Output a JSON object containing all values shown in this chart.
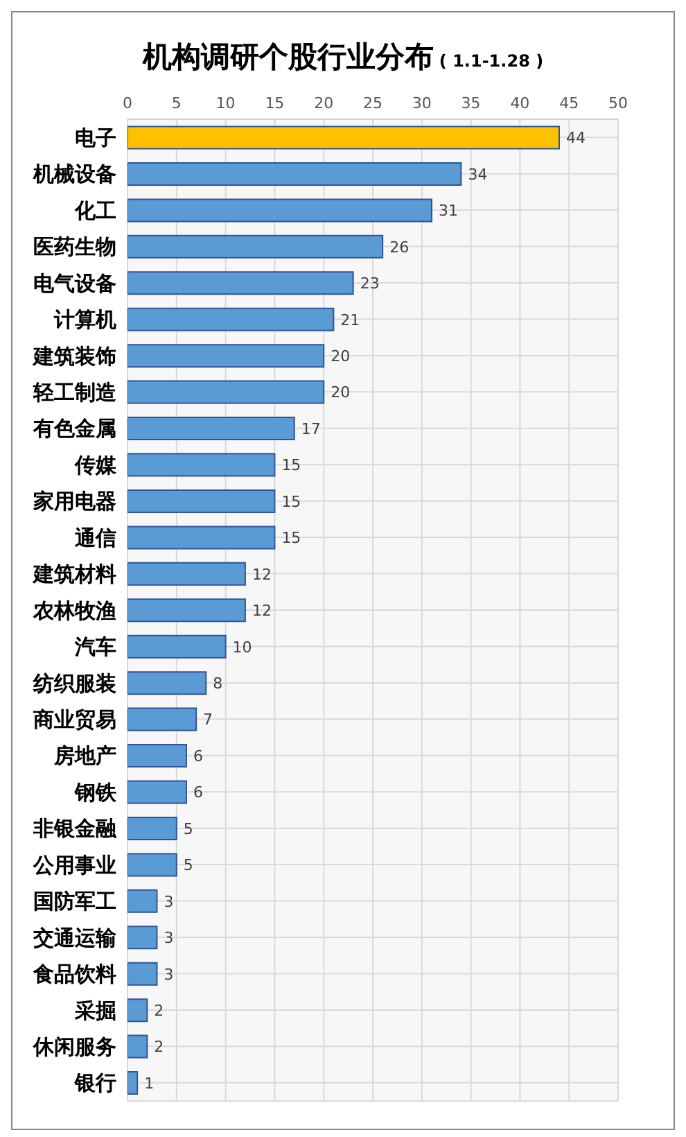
{
  "chart_data": {
    "type": "bar",
    "orientation": "horizontal",
    "title": "机构调研个股行业分布",
    "subtitle": "( 1.1-1.28 )",
    "categories": [
      "电子",
      "机械设备",
      "化工",
      "医药生物",
      "电气设备",
      "计算机",
      "建筑装饰",
      "轻工制造",
      "有色金属",
      "传媒",
      "家用电器",
      "通信",
      "建筑材料",
      "农林牧渔",
      "汽车",
      "纺织服装",
      "商业贸易",
      "房地产",
      "钢铁",
      "非银金融",
      "公用事业",
      "国防军工",
      "交通运输",
      "食品饮料",
      "采掘",
      "休闲服务",
      "银行"
    ],
    "values": [
      44,
      34,
      31,
      26,
      23,
      21,
      20,
      20,
      17,
      15,
      15,
      15,
      12,
      12,
      10,
      8,
      7,
      6,
      6,
      5,
      5,
      3,
      3,
      3,
      2,
      2,
      1
    ],
    "colors": [
      "#ffc000",
      "#5b9bd5",
      "#5b9bd5",
      "#5b9bd5",
      "#5b9bd5",
      "#5b9bd5",
      "#5b9bd5",
      "#5b9bd5",
      "#5b9bd5",
      "#5b9bd5",
      "#5b9bd5",
      "#5b9bd5",
      "#5b9bd5",
      "#5b9bd5",
      "#5b9bd5",
      "#5b9bd5",
      "#5b9bd5",
      "#5b9bd5",
      "#5b9bd5",
      "#5b9bd5",
      "#5b9bd5",
      "#5b9bd5",
      "#5b9bd5",
      "#5b9bd5",
      "#5b9bd5",
      "#5b9bd5",
      "#5b9bd5"
    ],
    "xlim": [
      0,
      50
    ],
    "xticks": [
      0,
      5,
      10,
      15,
      20,
      25,
      30,
      35,
      40,
      45,
      50
    ],
    "grid": true,
    "data_labels": true
  }
}
